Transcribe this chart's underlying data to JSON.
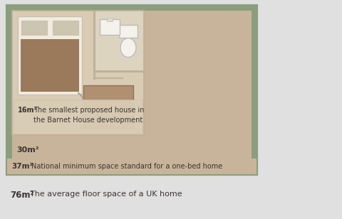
{
  "bg_color": "#e0e0e0",
  "outer_border_color": "#8a9e7e",
  "tan_fill": "#c8b49a",
  "light_room_color": "#d9ccb5",
  "bathroom_color": "#ddd4c0",
  "bed_frame_color": "#f0ece0",
  "bed_blanket_color": "#9a7a5a",
  "pillow_color": "#ccc5b0",
  "toilet_color": "#f5f2eb",
  "sink_color": "#f5f2eb",
  "table_color": "#b09070",
  "wall_color": "#bfb09a",
  "door_color": "#aaa090",
  "text_dark": "#3a3530",
  "text_medium": "#5a5248",
  "label_16m2": "16m²",
  "label_16m2_desc_line1": "The smallest proposed house in",
  "label_16m2_desc_line2": "the Barnet House development",
  "label_30m2": "30m²",
  "label_37m2": "37m²",
  "label_37m2_desc": "National minimum space standard for a one-bed home",
  "label_76m2": "76m²",
  "label_76m2_desc": "The average floor space of a UK home",
  "figsize": [
    4.8,
    3.08
  ],
  "dpi": 100
}
